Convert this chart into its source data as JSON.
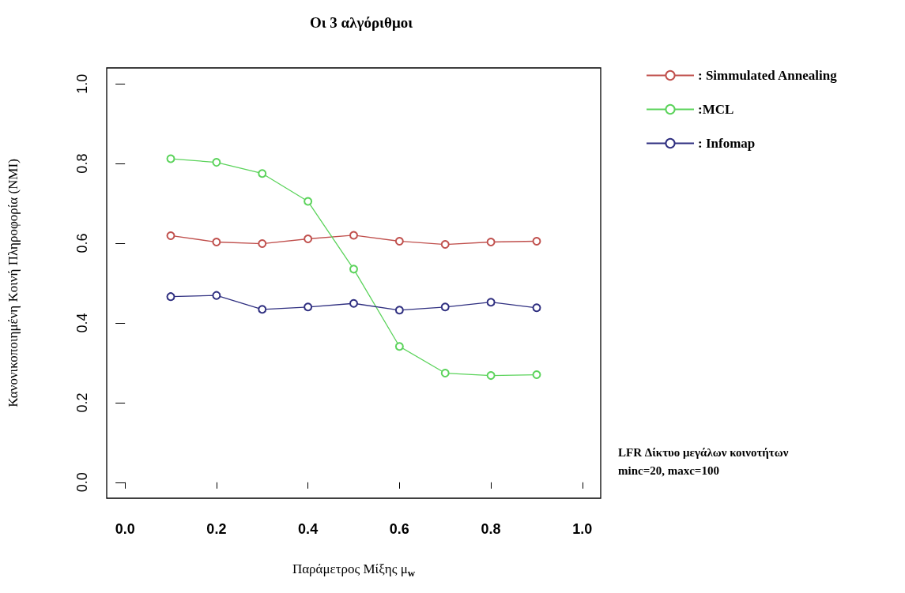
{
  "chart_data": {
    "type": "line",
    "title": "Οι 3 αλγόριθμοι",
    "xlabel": "Παράμετρος Μίξης μ$_{w}$",
    "ylabel": "Κανονικοποιημένη Κοινή Πληροφορία (NMI)",
    "x": [
      0.1,
      0.2,
      0.3,
      0.4,
      0.5,
      0.6,
      0.7,
      0.8,
      0.9
    ],
    "series": [
      {
        "name": ": Simmulated Annealing",
        "color": "#c0504d",
        "values": [
          0.619,
          0.603,
          0.599,
          0.611,
          0.62,
          0.605,
          0.597,
          0.603,
          0.605
        ]
      },
      {
        "name": ":MCL",
        "color": "#5bd35b",
        "values": [
          0.812,
          0.803,
          0.775,
          0.705,
          0.535,
          0.341,
          0.274,
          0.268,
          0.27
        ]
      },
      {
        "name": ": Infomap",
        "color": "#2f2f80",
        "values": [
          0.466,
          0.469,
          0.434,
          0.44,
          0.449,
          0.432,
          0.44,
          0.452,
          0.438
        ]
      }
    ],
    "xlim": [
      -0.04,
      1.04
    ],
    "ylim": [
      -0.04,
      1.04
    ],
    "xticks": [
      {
        "value": 0,
        "label": "0.0"
      },
      {
        "value": 0.2,
        "label": "0.2"
      },
      {
        "value": 0.4,
        "label": "0.4"
      },
      {
        "value": 0.6,
        "label": "0.6"
      },
      {
        "value": 0.8,
        "label": "0.8"
      },
      {
        "value": 1,
        "label": "1.0"
      }
    ],
    "yticks": [
      {
        "value": 0,
        "label": "0.0"
      },
      {
        "value": 0.2,
        "label": "0.2"
      },
      {
        "value": 0.4,
        "label": "0.4"
      },
      {
        "value": 0.6,
        "label": "0.6"
      },
      {
        "value": 0.8,
        "label": "0.8"
      },
      {
        "value": 1,
        "label": "1.0"
      }
    ],
    "annotations": [
      "LFR Δίκτυο μεγάλων κοινοτήτων",
      "minc=20, maxc=100"
    ],
    "legend": "top right",
    "grid": false,
    "marker": "circle",
    "line_style": "solid"
  }
}
